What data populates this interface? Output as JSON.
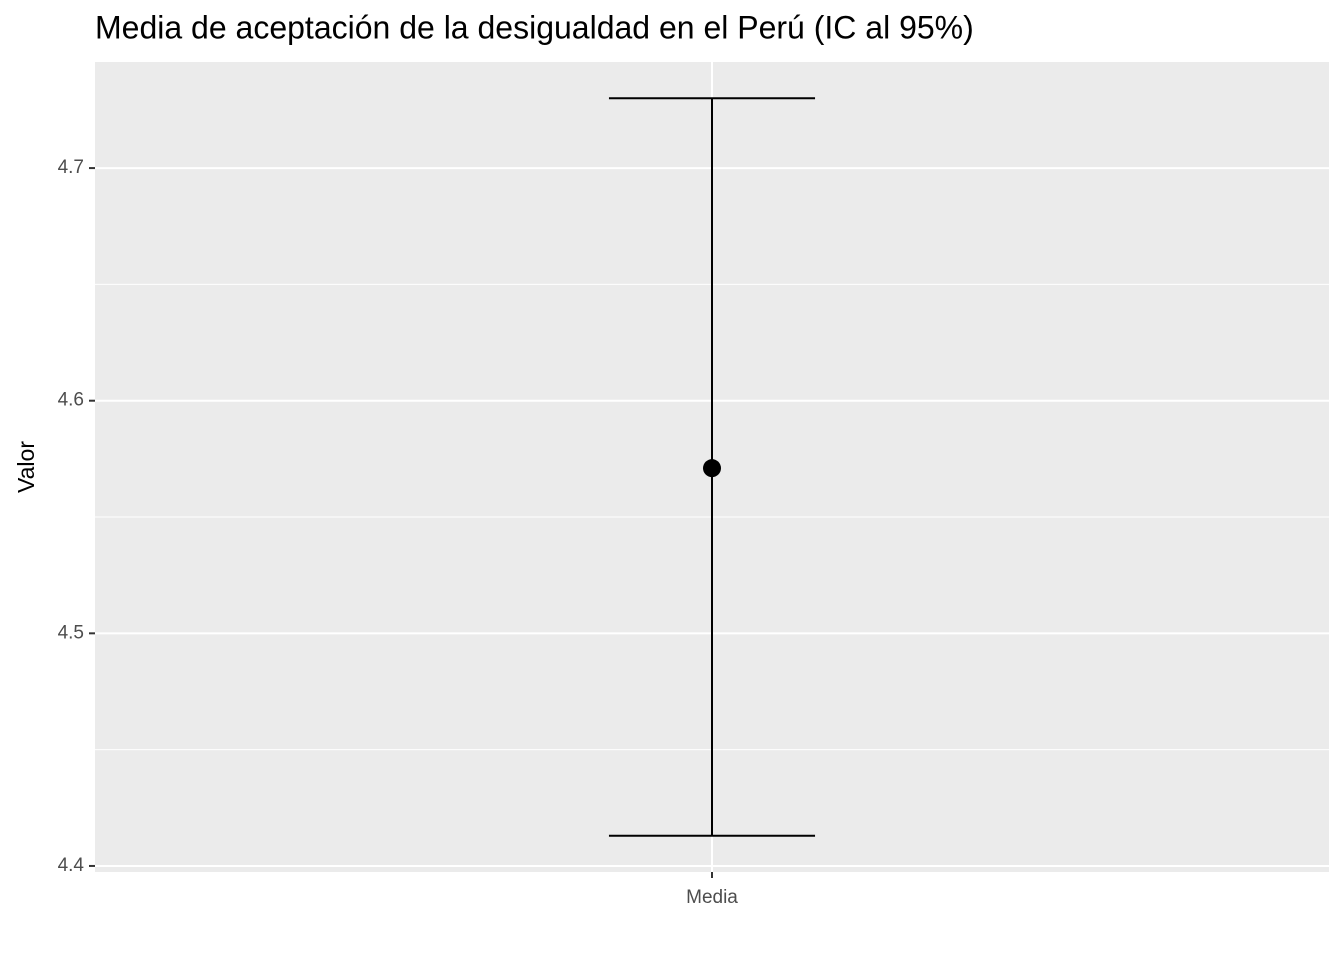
{
  "chart_data": {
    "type": "errorbar",
    "title": "Media de aceptación de la desigualdad en el Perú (IC al 95%)",
    "y_label": "Valor",
    "categories": [
      "Media"
    ],
    "values": [
      4.571
    ],
    "lower": [
      4.413
    ],
    "upper": [
      4.73
    ],
    "color": "#000000",
    "ylim": [
      4.3974,
      4.7456
    ],
    "yticks": [
      {
        "value": 4.4,
        "label": "4.4"
      },
      {
        "value": 4.5,
        "label": "4.5"
      },
      {
        "value": 4.6,
        "label": "4.6"
      },
      {
        "value": 4.7,
        "label": "4.7"
      }
    ],
    "minor_yticks": [
      4.45,
      4.55,
      4.65
    ],
    "grid": true
  }
}
